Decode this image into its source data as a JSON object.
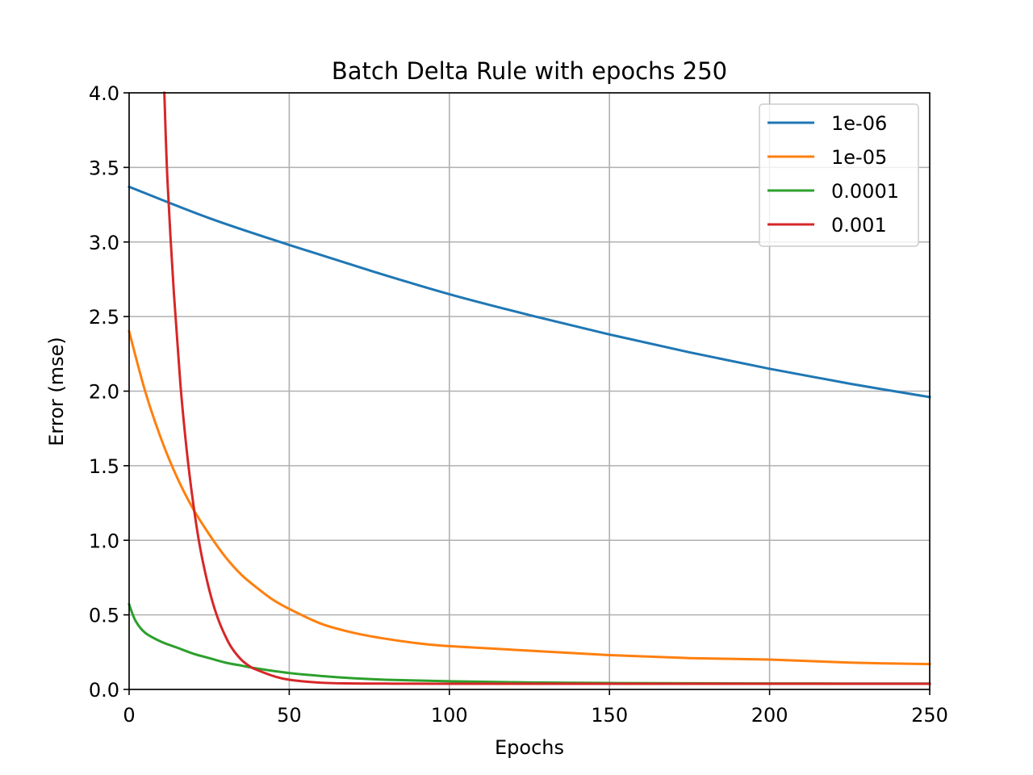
{
  "chart_data": {
    "type": "line",
    "title": "Batch Delta Rule with epochs 250",
    "xlabel": "Epochs",
    "ylabel": "Error (mse)",
    "xlim": [
      0,
      250
    ],
    "ylim": [
      0,
      4.0
    ],
    "xticks": [
      0,
      50,
      100,
      150,
      200,
      250
    ],
    "yticks": [
      0.0,
      0.5,
      1.0,
      1.5,
      2.0,
      2.5,
      3.0,
      3.5,
      4.0
    ],
    "xtick_labels": [
      "0",
      "50",
      "100",
      "150",
      "200",
      "250"
    ],
    "ytick_labels": [
      "0.0",
      "0.5",
      "1.0",
      "1.5",
      "2.0",
      "2.5",
      "3.0",
      "3.5",
      "4.0"
    ],
    "grid": true,
    "legend_position": "upper right",
    "series": [
      {
        "name": "1e-06",
        "color": "#1f77b4",
        "x": [
          0,
          25,
          50,
          75,
          100,
          125,
          150,
          175,
          200,
          225,
          250
        ],
        "y": [
          3.37,
          3.16,
          2.98,
          2.81,
          2.65,
          2.51,
          2.38,
          2.26,
          2.15,
          2.05,
          1.96
        ]
      },
      {
        "name": "1e-05",
        "color": "#ff7f0e",
        "x": [
          0,
          5,
          10,
          15,
          20,
          25,
          30,
          35,
          40,
          45,
          50,
          60,
          70,
          80,
          90,
          100,
          125,
          150,
          175,
          200,
          225,
          250
        ],
        "y": [
          2.4,
          2.0,
          1.68,
          1.42,
          1.21,
          1.04,
          0.89,
          0.77,
          0.68,
          0.6,
          0.54,
          0.44,
          0.38,
          0.34,
          0.31,
          0.29,
          0.26,
          0.23,
          0.21,
          0.2,
          0.18,
          0.17
        ]
      },
      {
        "name": "0.0001",
        "color": "#2ca02c",
        "x": [
          0,
          2,
          5,
          10,
          15,
          20,
          25,
          30,
          35,
          40,
          50,
          60,
          70,
          80,
          100,
          125,
          150,
          175,
          200,
          250
        ],
        "y": [
          0.57,
          0.46,
          0.38,
          0.32,
          0.28,
          0.24,
          0.21,
          0.18,
          0.16,
          0.14,
          0.11,
          0.09,
          0.075,
          0.065,
          0.055,
          0.047,
          0.043,
          0.041,
          0.04,
          0.039
        ]
      },
      {
        "name": "0.001",
        "color": "#d62728",
        "x": [
          11,
          12,
          14,
          16,
          18,
          20,
          22,
          24,
          26,
          28,
          30,
          32,
          35,
          38,
          40,
          45,
          50,
          60,
          70,
          80,
          100,
          150,
          200,
          250
        ],
        "y": [
          4.0,
          3.4,
          2.65,
          2.05,
          1.6,
          1.25,
          0.97,
          0.76,
          0.59,
          0.46,
          0.36,
          0.28,
          0.2,
          0.15,
          0.13,
          0.09,
          0.065,
          0.045,
          0.04,
          0.039,
          0.038,
          0.038,
          0.038,
          0.038
        ]
      }
    ]
  }
}
